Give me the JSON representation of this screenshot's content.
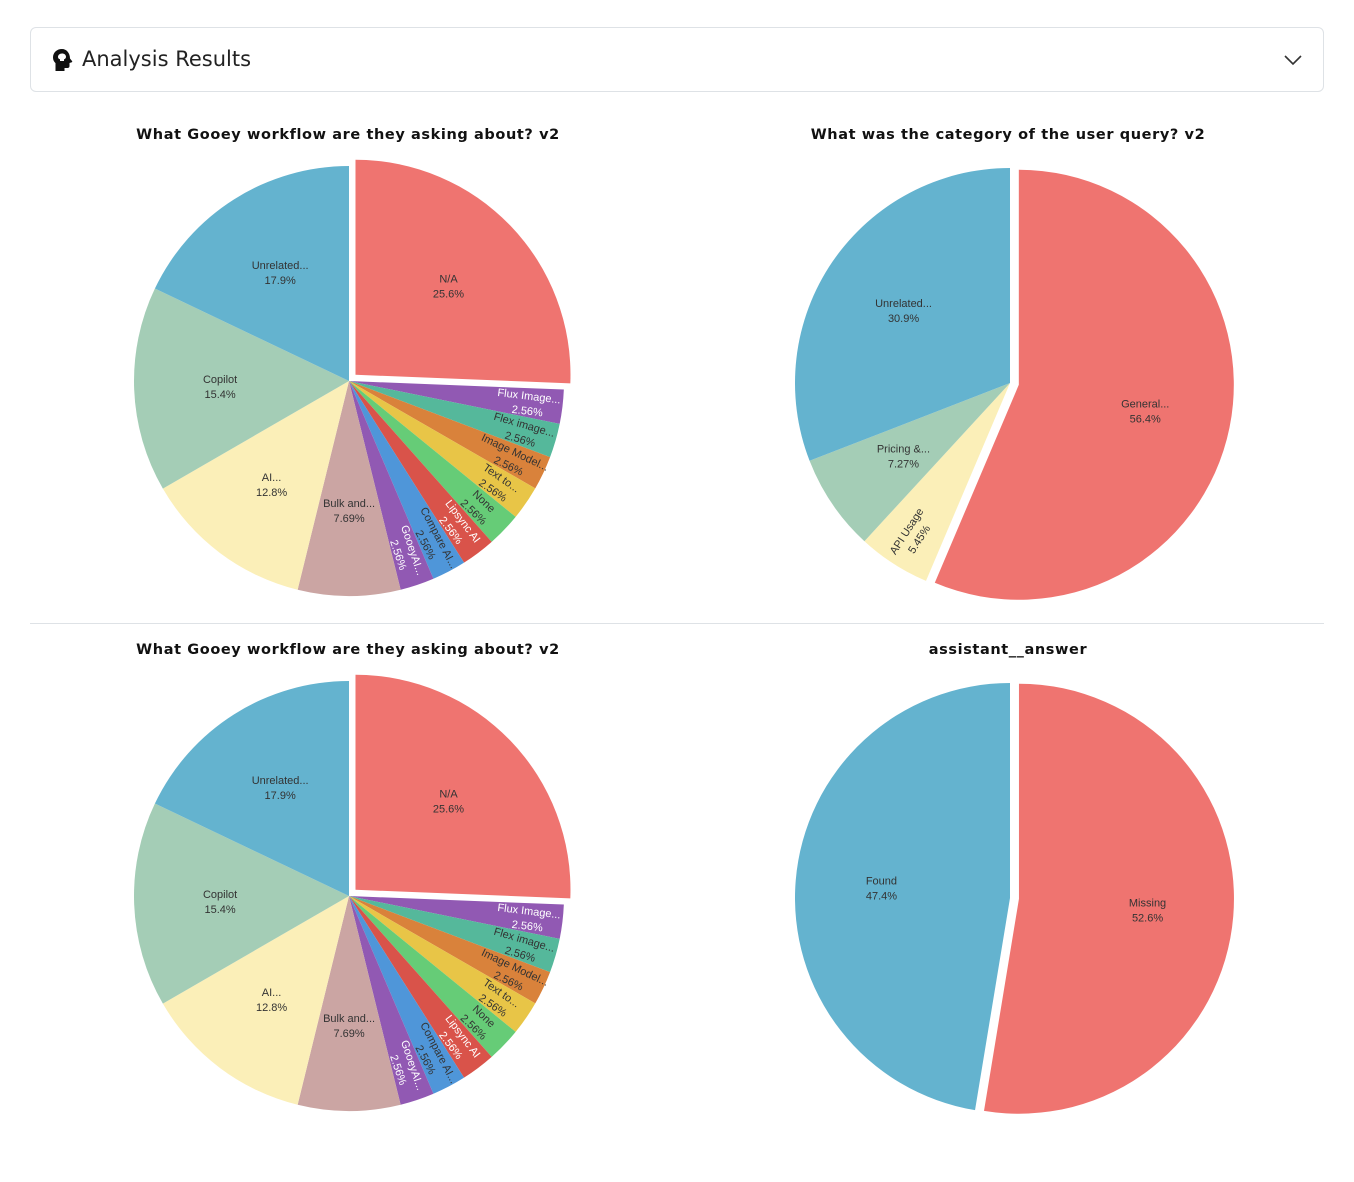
{
  "header": {
    "title": "Analysis Results",
    "icon": "brain-head-icon",
    "toggle_icon": "chevron-down-icon"
  },
  "chart_data": [
    {
      "type": "pie",
      "title": "What Gooey workflow are they asking about? v2",
      "exploded": "N/A",
      "slices": [
        {
          "label": "N/A",
          "value": 25.6,
          "display": "25.6%",
          "color": "#ef7470",
          "text": "#333"
        },
        {
          "label": "Flux Image...",
          "value": 2.56,
          "display": "2.56%",
          "color": "#9159b3",
          "text": "#fff"
        },
        {
          "label": "Flex image...",
          "value": 2.56,
          "display": "2.56%",
          "color": "#55b89b",
          "text": "#333"
        },
        {
          "label": "Image Model...",
          "value": 2.56,
          "display": "2.56%",
          "color": "#d9823b",
          "text": "#333"
        },
        {
          "label": "Text to...",
          "value": 2.56,
          "display": "2.56%",
          "color": "#e8c547",
          "text": "#333"
        },
        {
          "label": "None",
          "value": 2.56,
          "display": "2.56%",
          "color": "#66cc77",
          "text": "#333"
        },
        {
          "label": "Lipsync AI",
          "value": 2.56,
          "display": "2.56%",
          "color": "#d9534a",
          "text": "#fff"
        },
        {
          "label": "Compare AI...",
          "value": 2.56,
          "display": "2.56%",
          "color": "#4f96d9",
          "text": "#333"
        },
        {
          "label": "GooeyAI...",
          "value": 2.56,
          "display": "2.56%",
          "color": "#9159b3",
          "text": "#fff"
        },
        {
          "label": "Bulk and...",
          "value": 7.69,
          "display": "7.69%",
          "color": "#cba5a3",
          "text": "#333"
        },
        {
          "label": "AI...",
          "value": 12.8,
          "display": "12.8%",
          "color": "#fbefb8",
          "text": "#333"
        },
        {
          "label": "Copilot",
          "value": 15.4,
          "display": "15.4%",
          "color": "#a4cdb6",
          "text": "#333"
        },
        {
          "label": "Unrelated...",
          "value": 17.9,
          "display": "17.9%",
          "color": "#64b3cf",
          "text": "#333"
        }
      ]
    },
    {
      "type": "pie",
      "title": "What was the category of the user query? v2",
      "exploded": "General...",
      "slices": [
        {
          "label": "General...",
          "value": 56.4,
          "display": "56.4%",
          "color": "#ef7470",
          "text": "#333"
        },
        {
          "label": "API Usage",
          "value": 5.45,
          "display": "5.45%",
          "color": "#fbefb8",
          "text": "#333"
        },
        {
          "label": "Pricing &...",
          "value": 7.27,
          "display": "7.27%",
          "color": "#a4cdb6",
          "text": "#333"
        },
        {
          "label": "Unrelated...",
          "value": 30.9,
          "display": "30.9%",
          "color": "#64b3cf",
          "text": "#333"
        }
      ]
    },
    {
      "type": "pie",
      "title": "What Gooey workflow are they asking about? v2",
      "exploded": "N/A",
      "slices": [
        {
          "label": "N/A",
          "value": 25.6,
          "display": "25.6%",
          "color": "#ef7470",
          "text": "#333"
        },
        {
          "label": "Flux Image...",
          "value": 2.56,
          "display": "2.56%",
          "color": "#9159b3",
          "text": "#fff"
        },
        {
          "label": "Flex image...",
          "value": 2.56,
          "display": "2.56%",
          "color": "#55b89b",
          "text": "#333"
        },
        {
          "label": "Image Model...",
          "value": 2.56,
          "display": "2.56%",
          "color": "#d9823b",
          "text": "#333"
        },
        {
          "label": "Text to...",
          "value": 2.56,
          "display": "2.56%",
          "color": "#e8c547",
          "text": "#333"
        },
        {
          "label": "None",
          "value": 2.56,
          "display": "2.56%",
          "color": "#66cc77",
          "text": "#333"
        },
        {
          "label": "Lipsync AI",
          "value": 2.56,
          "display": "2.56%",
          "color": "#d9534a",
          "text": "#fff"
        },
        {
          "label": "Compare AI...",
          "value": 2.56,
          "display": "2.56%",
          "color": "#4f96d9",
          "text": "#333"
        },
        {
          "label": "GooeyAI...",
          "value": 2.56,
          "display": "2.56%",
          "color": "#9159b3",
          "text": "#fff"
        },
        {
          "label": "Bulk and...",
          "value": 7.69,
          "display": "7.69%",
          "color": "#cba5a3",
          "text": "#333"
        },
        {
          "label": "AI...",
          "value": 12.8,
          "display": "12.8%",
          "color": "#fbefb8",
          "text": "#333"
        },
        {
          "label": "Copilot",
          "value": 15.4,
          "display": "15.4%",
          "color": "#a4cdb6",
          "text": "#333"
        },
        {
          "label": "Unrelated...",
          "value": 17.9,
          "display": "17.9%",
          "color": "#64b3cf",
          "text": "#333"
        }
      ]
    },
    {
      "type": "pie",
      "title": "assistant__answer",
      "exploded": "Missing",
      "slices": [
        {
          "label": "Missing",
          "value": 52.6,
          "display": "52.6%",
          "color": "#ef7470",
          "text": "#333"
        },
        {
          "label": "Found",
          "value": 47.4,
          "display": "47.4%",
          "color": "#64b3cf",
          "text": "#333"
        }
      ]
    }
  ]
}
